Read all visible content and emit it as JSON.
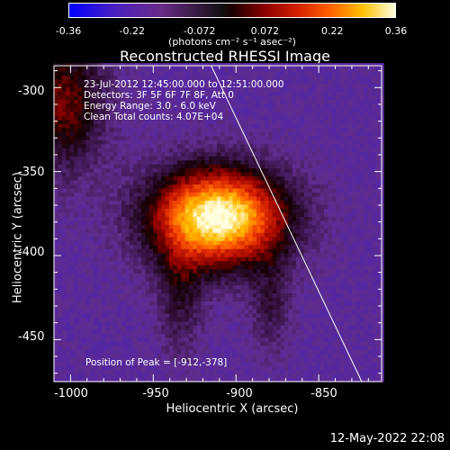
{
  "chart_data": {
    "type": "heatmap",
    "title": "Reconstructed RHESSI Image",
    "xlabel": "Heliocentric X (arcsec)",
    "ylabel": "Heliocentric Y (arcsec)",
    "xlim": [
      -1010,
      -812
    ],
    "ylim": [
      -475,
      -287
    ],
    "x_ticks": [
      "-1000",
      "-950",
      "-900",
      "-850"
    ],
    "y_ticks": [
      "-300",
      "-350",
      "-400",
      "-450"
    ],
    "x_tick_values": [
      -1000,
      -950,
      -900,
      -850
    ],
    "y_tick_values": [
      -300,
      -350,
      -400,
      -450
    ],
    "colorbar": {
      "ticks": [
        "-0.36",
        "-0.22",
        "-0.072",
        "0.072",
        "0.22",
        "0.36"
      ],
      "tick_values": [
        -0.36,
        -0.22,
        -0.072,
        0.072,
        0.22,
        0.36
      ],
      "units": "(photons cm⁻² s⁻¹ asec⁻²)"
    },
    "annotations": [
      "23-Jul-2012 12:45:00.000 to 12:51:00.000",
      "Detectors: 3F 5F 6F 7F 8F, Att 0",
      "Energy Range: 3.0 - 6.0 keV",
      "Clean    Total counts: 4.07E+04"
    ],
    "peak_label": "Position of Peak = [-912,-378]",
    "peak": [
      -912,
      -378
    ]
  },
  "footer": {
    "timestamp": "12-May-2022 22:08"
  }
}
